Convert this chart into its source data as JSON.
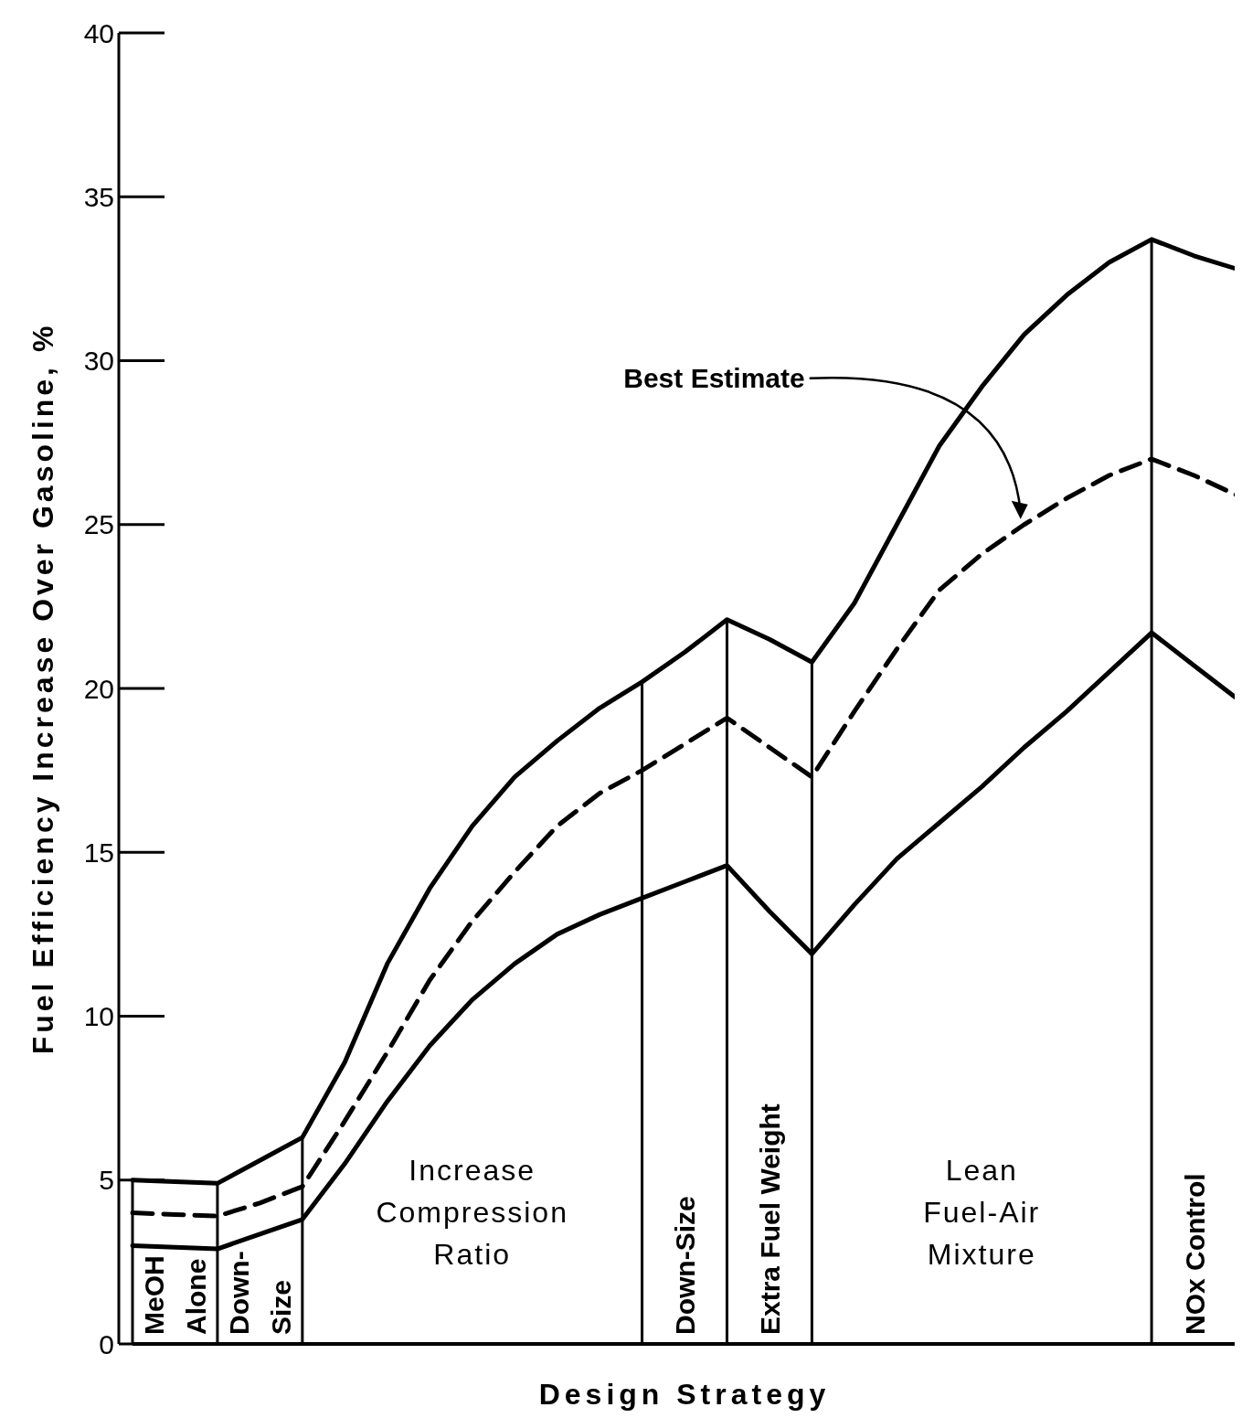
{
  "chart_data": {
    "type": "line",
    "xlabel": "Design Strategy",
    "ylabel": "Fuel Efficiency Increase Over Gasoline, %",
    "categories": [
      null,
      null,
      null,
      null,
      null,
      null,
      null,
      null,
      null,
      null,
      null,
      null,
      null,
      null,
      null,
      null,
      null,
      null,
      null,
      null,
      null,
      null,
      null,
      null,
      null,
      null,
      null
    ],
    "ylim": [
      0,
      40
    ],
    "yticks": [
      0,
      5,
      10,
      15,
      20,
      25,
      30,
      35,
      40
    ],
    "marker": "none",
    "series": [
      {
        "color": "#000000",
        "line_style": "solid",
        "values": [
          5.0,
          4.95,
          4.9,
          5.6,
          6.3,
          8.6,
          11.6,
          13.9,
          15.8,
          17.3,
          18.4,
          19.4,
          20.2,
          21.1,
          22.1,
          21.5,
          20.8,
          22.6,
          25.0,
          27.4,
          29.2,
          30.8,
          32.0,
          33.0,
          33.7,
          33.2,
          32.8
        ]
      },
      {
        "name": "Best Estimate",
        "color": "#000000",
        "line_style": "dashed",
        "values": [
          4.0,
          3.95,
          3.9,
          4.3,
          4.8,
          6.8,
          8.9,
          11.1,
          12.9,
          14.4,
          15.8,
          16.8,
          17.5,
          18.3,
          19.1,
          18.2,
          17.3,
          19.3,
          21.2,
          23.0,
          24.1,
          25.0,
          25.8,
          26.5,
          27.0,
          26.5,
          25.9
        ]
      },
      {
        "color": "#000000",
        "line_style": "solid",
        "values": [
          3.0,
          2.95,
          2.9,
          3.35,
          3.8,
          5.5,
          7.4,
          9.1,
          10.5,
          11.6,
          12.5,
          13.1,
          13.6,
          14.1,
          14.6,
          13.2,
          11.9,
          13.4,
          14.8,
          15.9,
          17.0,
          18.2,
          19.3,
          20.5,
          21.7,
          20.7,
          19.7
        ]
      }
    ],
    "annotations": [
      "MeOH Alone",
      "Down-Size",
      "Increase Compression Ratio",
      "Down-Size",
      "Extra Fuel Weight",
      "Lean Fuel-Air Mixture",
      "NOx Control"
    ]
  }
}
